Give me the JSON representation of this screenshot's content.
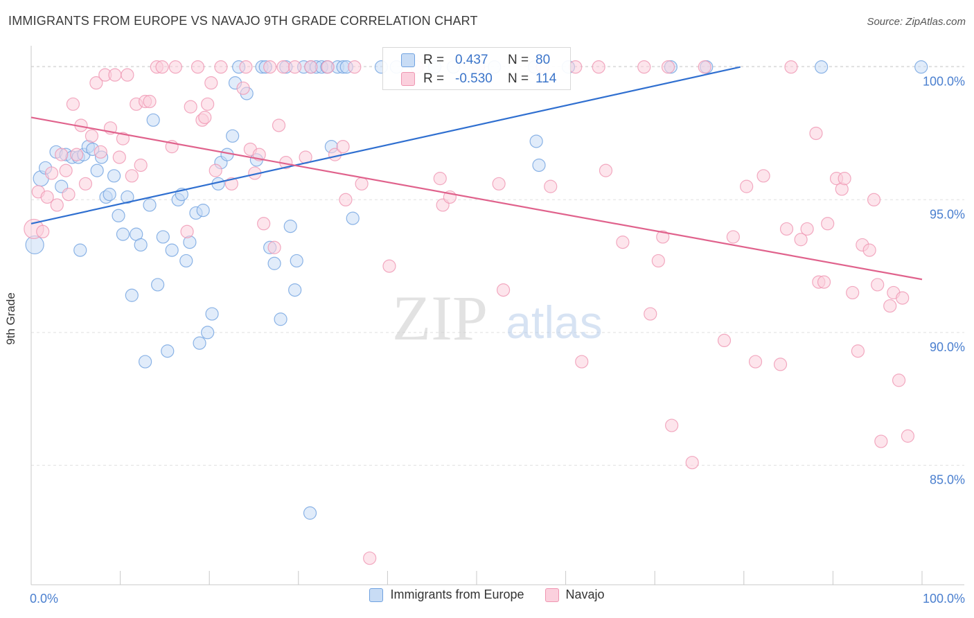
{
  "header": {
    "title": "IMMIGRANTS FROM EUROPE VS NAVAJO 9TH GRADE CORRELATION CHART",
    "source": "Source: ZipAtlas.com"
  },
  "watermark": {
    "zip": "ZIP",
    "atlas": "atlas"
  },
  "stats": {
    "rows": [
      {
        "r_label": "R =",
        "r_value": "0.437",
        "n_label": "N =",
        "n_value": "80",
        "color": "#6fa1e0"
      },
      {
        "r_label": "R =",
        "r_value": "-0.530",
        "n_label": "N =",
        "n_value": "114",
        "color": "#ef95b1"
      }
    ]
  },
  "legend": {
    "items": [
      {
        "label": "Immigrants from Europe",
        "color": "#6fa1e0"
      },
      {
        "label": "Navajo",
        "color": "#ef95b1"
      }
    ]
  },
  "chart_data": {
    "type": "scatter",
    "xlabel": "",
    "ylabel": "9th Grade",
    "xlim": [
      0,
      100
    ],
    "ylim": [
      80.5,
      100.8
    ],
    "x_tick_labels": [
      "0.0%",
      "100.0%"
    ],
    "y_ticks": [
      85,
      90,
      95,
      100
    ],
    "y_tick_labels": [
      "85.0%",
      "90.0%",
      "95.0%",
      "100.0%"
    ],
    "grid": true,
    "series": [
      {
        "name": "Immigrants from Europe",
        "color": "#6fa1e0",
        "trend": {
          "x": [
            0,
            79.6
          ],
          "y": [
            94.1,
            100
          ]
        },
        "points": [
          [
            0.4,
            93.3
          ],
          [
            1.1,
            95.8
          ],
          [
            1.6,
            96.2
          ],
          [
            2.8,
            96.8
          ],
          [
            3.4,
            95.5
          ],
          [
            3.9,
            96.7
          ],
          [
            4.6,
            96.6
          ],
          [
            5.3,
            96.6
          ],
          [
            5.5,
            93.1
          ],
          [
            5.9,
            96.7
          ],
          [
            6.4,
            97.0
          ],
          [
            6.9,
            96.9
          ],
          [
            7.4,
            96.1
          ],
          [
            7.9,
            96.6
          ],
          [
            8.4,
            95.1
          ],
          [
            8.8,
            95.2
          ],
          [
            9.3,
            95.9
          ],
          [
            9.8,
            94.4
          ],
          [
            10.3,
            93.7
          ],
          [
            10.8,
            95.1
          ],
          [
            11.3,
            91.4
          ],
          [
            11.8,
            93.7
          ],
          [
            12.3,
            93.3
          ],
          [
            12.8,
            88.9
          ],
          [
            13.3,
            94.8
          ],
          [
            13.7,
            98.0
          ],
          [
            14.2,
            91.8
          ],
          [
            14.8,
            93.6
          ],
          [
            15.3,
            89.3
          ],
          [
            15.8,
            93.1
          ],
          [
            16.5,
            95.0
          ],
          [
            16.9,
            95.2
          ],
          [
            17.4,
            92.7
          ],
          [
            17.8,
            93.4
          ],
          [
            18.5,
            94.5
          ],
          [
            18.9,
            89.6
          ],
          [
            19.3,
            94.6
          ],
          [
            19.8,
            90.0
          ],
          [
            20.3,
            90.7
          ],
          [
            21.0,
            95.6
          ],
          [
            21.3,
            96.4
          ],
          [
            22.0,
            96.7
          ],
          [
            22.6,
            97.4
          ],
          [
            22.9,
            99.4
          ],
          [
            23.3,
            100.0
          ],
          [
            24.2,
            99.0
          ],
          [
            25.3,
            96.5
          ],
          [
            25.9,
            100.0
          ],
          [
            26.3,
            100.0
          ],
          [
            26.8,
            93.2
          ],
          [
            27.3,
            92.6
          ],
          [
            28.0,
            90.5
          ],
          [
            28.6,
            100.0
          ],
          [
            29.1,
            94.0
          ],
          [
            29.6,
            91.6
          ],
          [
            29.8,
            92.7
          ],
          [
            30.6,
            100.0
          ],
          [
            31.4,
            100.0
          ],
          [
            31.3,
            83.2
          ],
          [
            32.0,
            100.0
          ],
          [
            32.6,
            100.0
          ],
          [
            33.2,
            100.0
          ],
          [
            33.7,
            97.0
          ],
          [
            34.4,
            100.0
          ],
          [
            35.0,
            100.0
          ],
          [
            35.4,
            100.0
          ],
          [
            36.1,
            94.3
          ],
          [
            39.3,
            100.0
          ],
          [
            41.0,
            100.0
          ],
          [
            45.3,
            100.0
          ],
          [
            47.4,
            100.0
          ],
          [
            52.0,
            100.0
          ],
          [
            56.5,
            100.0
          ],
          [
            56.7,
            97.2
          ],
          [
            57.0,
            96.3
          ],
          [
            60.3,
            100.0
          ],
          [
            71.8,
            100.0
          ],
          [
            75.8,
            100.0
          ],
          [
            88.7,
            100.0
          ],
          [
            99.9,
            100.0
          ]
        ]
      },
      {
        "name": "Navajo",
        "color": "#ef95b1",
        "trend": {
          "x": [
            0,
            100
          ],
          "y": [
            98.1,
            92.0
          ]
        },
        "points": [
          [
            0.3,
            93.9
          ],
          [
            0.8,
            95.3
          ],
          [
            1.3,
            93.8
          ],
          [
            1.8,
            95.1
          ],
          [
            2.3,
            96.0
          ],
          [
            2.9,
            94.8
          ],
          [
            3.4,
            96.7
          ],
          [
            3.9,
            96.1
          ],
          [
            4.2,
            95.2
          ],
          [
            4.7,
            98.6
          ],
          [
            5.1,
            96.7
          ],
          [
            5.6,
            97.8
          ],
          [
            6.1,
            95.6
          ],
          [
            6.8,
            97.4
          ],
          [
            7.3,
            99.4
          ],
          [
            7.8,
            96.8
          ],
          [
            8.3,
            99.7
          ],
          [
            8.9,
            97.7
          ],
          [
            9.4,
            99.7
          ],
          [
            9.9,
            96.6
          ],
          [
            10.3,
            97.3
          ],
          [
            10.8,
            99.7
          ],
          [
            11.3,
            95.9
          ],
          [
            11.8,
            98.6
          ],
          [
            12.3,
            96.3
          ],
          [
            12.8,
            98.7
          ],
          [
            13.3,
            98.7
          ],
          [
            14.1,
            100.0
          ],
          [
            14.7,
            100.0
          ],
          [
            15.8,
            97.0
          ],
          [
            16.2,
            100.0
          ],
          [
            17.5,
            93.8
          ],
          [
            17.9,
            98.5
          ],
          [
            18.7,
            100.0
          ],
          [
            19.2,
            98.0
          ],
          [
            19.5,
            98.1
          ],
          [
            19.8,
            98.6
          ],
          [
            20.2,
            99.4
          ],
          [
            20.7,
            96.1
          ],
          [
            21.3,
            100.0
          ],
          [
            22.5,
            95.6
          ],
          [
            23.8,
            99.2
          ],
          [
            24.1,
            100.0
          ],
          [
            24.6,
            96.9
          ],
          [
            25.1,
            96.0
          ],
          [
            25.6,
            96.7
          ],
          [
            26.1,
            94.1
          ],
          [
            26.8,
            100.0
          ],
          [
            27.3,
            93.2
          ],
          [
            27.8,
            97.8
          ],
          [
            28.3,
            100.0
          ],
          [
            28.6,
            96.4
          ],
          [
            29.6,
            100.0
          ],
          [
            30.8,
            96.6
          ],
          [
            31.4,
            100.0
          ],
          [
            33.3,
            100.0
          ],
          [
            34.1,
            96.7
          ],
          [
            35.0,
            97.0
          ],
          [
            35.3,
            95.0
          ],
          [
            36.3,
            100.0
          ],
          [
            37.1,
            95.6
          ],
          [
            38.0,
            81.5
          ],
          [
            40.2,
            92.5
          ],
          [
            43.3,
            100.0
          ],
          [
            45.9,
            95.8
          ],
          [
            46.2,
            94.8
          ],
          [
            47.0,
            95.1
          ],
          [
            50.2,
            100.0
          ],
          [
            52.5,
            95.6
          ],
          [
            53.0,
            91.6
          ],
          [
            57.4,
            100.0
          ],
          [
            58.3,
            95.5
          ],
          [
            61.1,
            100.0
          ],
          [
            61.8,
            88.9
          ],
          [
            63.7,
            100.0
          ],
          [
            64.5,
            96.1
          ],
          [
            66.4,
            93.4
          ],
          [
            68.8,
            100.0
          ],
          [
            69.5,
            90.7
          ],
          [
            70.4,
            92.7
          ],
          [
            70.9,
            93.6
          ],
          [
            71.5,
            100.0
          ],
          [
            71.9,
            86.5
          ],
          [
            74.2,
            85.1
          ],
          [
            75.6,
            100.0
          ],
          [
            77.8,
            89.7
          ],
          [
            78.8,
            93.6
          ],
          [
            80.3,
            95.5
          ],
          [
            81.3,
            88.9
          ],
          [
            82.2,
            95.9
          ],
          [
            84.1,
            88.8
          ],
          [
            84.8,
            93.9
          ],
          [
            85.3,
            100.0
          ],
          [
            86.4,
            93.5
          ],
          [
            87.1,
            93.9
          ],
          [
            88.1,
            97.5
          ],
          [
            88.4,
            91.9
          ],
          [
            89.0,
            91.9
          ],
          [
            89.4,
            94.1
          ],
          [
            90.4,
            95.8
          ],
          [
            91.0,
            95.4
          ],
          [
            91.3,
            95.8
          ],
          [
            92.2,
            91.5
          ],
          [
            92.8,
            89.3
          ],
          [
            93.3,
            93.3
          ],
          [
            94.1,
            93.1
          ],
          [
            94.6,
            95.0
          ],
          [
            95.0,
            91.8
          ],
          [
            95.4,
            85.9
          ],
          [
            96.4,
            91.0
          ],
          [
            96.8,
            91.5
          ],
          [
            97.4,
            88.2
          ],
          [
            97.8,
            91.3
          ],
          [
            98.4,
            86.1
          ]
        ]
      }
    ]
  }
}
